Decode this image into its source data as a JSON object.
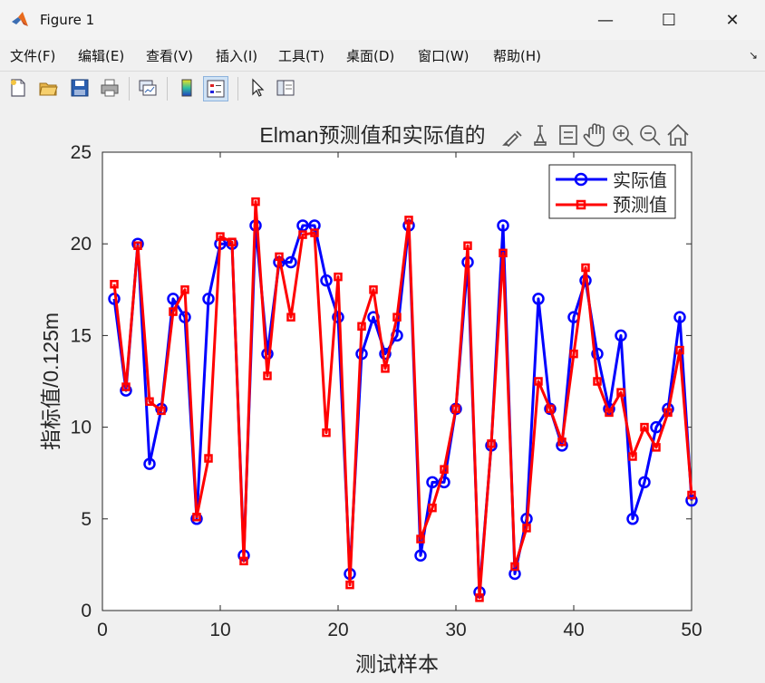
{
  "window": {
    "title": "Figure 1",
    "minimize": "—",
    "maximize": "☐",
    "close": "✕"
  },
  "menu": [
    "文件(F)",
    "编辑(E)",
    "查看(V)",
    "插入(I)",
    "工具(T)",
    "桌面(D)",
    "窗口(W)",
    "帮助(H)"
  ],
  "toolbar_icons": [
    "new-figure-icon",
    "open-file-icon",
    "save-icon",
    "print-icon",
    "link-plot-icon",
    "colorbar-icon",
    "legend-icon",
    "pointer-icon",
    "property-inspector-icon"
  ],
  "axes_toolbar_icons": [
    "brush-icon",
    "data-tips-icon",
    "restore-view-icon",
    "pan-icon",
    "zoom-in-icon",
    "zoom-out-icon",
    "home-icon"
  ],
  "chart_data": {
    "type": "line",
    "title": "Elman预测值和实际值的",
    "xlabel": "测试样本",
    "ylabel": "指标值/0.125m",
    "xlim": [
      0,
      50
    ],
    "ylim": [
      0,
      25
    ],
    "xticks": [
      0,
      10,
      20,
      30,
      40,
      50
    ],
    "yticks": [
      0,
      5,
      10,
      15,
      20,
      25
    ],
    "legend_position": "top-right",
    "x": [
      1,
      2,
      3,
      4,
      5,
      6,
      7,
      8,
      9,
      10,
      11,
      12,
      13,
      14,
      15,
      16,
      17,
      18,
      19,
      20,
      21,
      22,
      23,
      24,
      25,
      26,
      27,
      28,
      29,
      30,
      31,
      32,
      33,
      34,
      35,
      36,
      37,
      38,
      39,
      40,
      41,
      42,
      43,
      44,
      45,
      46,
      47,
      48,
      49,
      50
    ],
    "series": [
      {
        "name": "实际值",
        "color": "#0000ff",
        "marker": "circle",
        "values": [
          17,
          12,
          20,
          8,
          11,
          17,
          16,
          5,
          17,
          20,
          20,
          3,
          21,
          14,
          19,
          19,
          21,
          21,
          18,
          16,
          2,
          14,
          16,
          14,
          15,
          21,
          3,
          7,
          7,
          11,
          19,
          1,
          9,
          21,
          2,
          5,
          17,
          11,
          9,
          16,
          18,
          14,
          11,
          15,
          5,
          7,
          10,
          11,
          16,
          6
        ]
      },
      {
        "name": "预测值",
        "color": "#ff0000",
        "marker": "square",
        "values": [
          17.8,
          12.2,
          19.9,
          11.4,
          10.9,
          16.3,
          17.5,
          5.1,
          8.3,
          20.4,
          20.1,
          2.7,
          22.3,
          12.8,
          19.3,
          16,
          20.5,
          20.6,
          9.7,
          18.2,
          1.4,
          15.5,
          17.5,
          13.2,
          16,
          21.3,
          3.9,
          5.6,
          7.7,
          11,
          19.9,
          0.7,
          9.1,
          19.5,
          2.4,
          4.5,
          12.5,
          11,
          9.2,
          14,
          18.7,
          12.5,
          10.8,
          11.9,
          8.4,
          10,
          8.9,
          10.8,
          14.2,
          6.3
        ]
      }
    ]
  }
}
